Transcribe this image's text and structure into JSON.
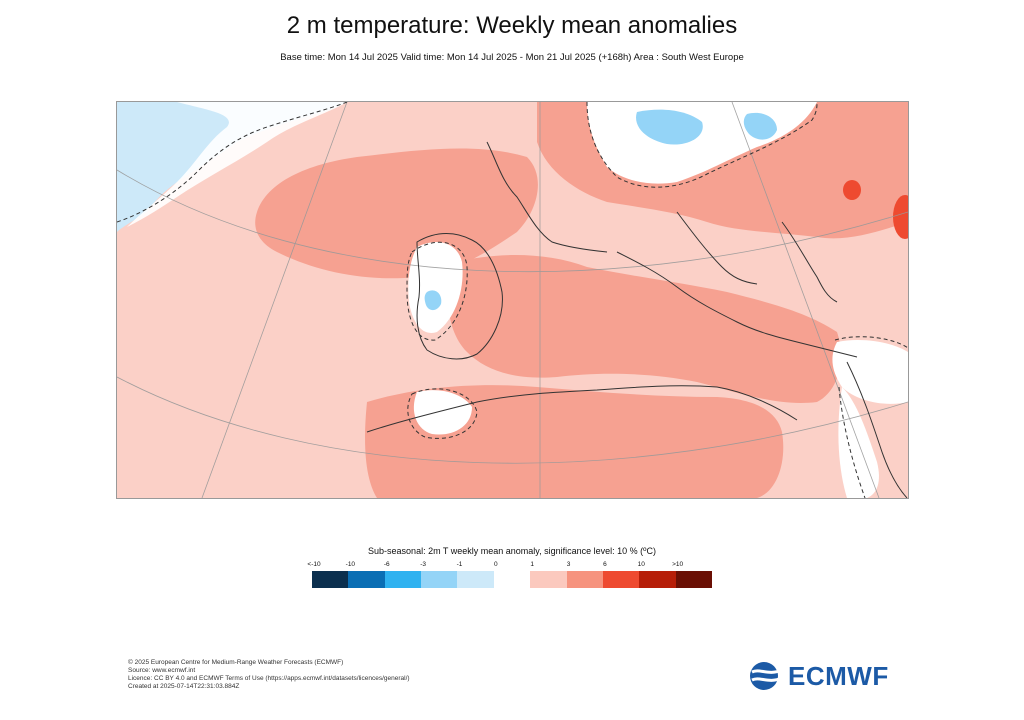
{
  "title": "2 m temperature: Weekly mean anomalies",
  "subtitle": "Base time: Mon 14 Jul 2025 Valid time: Mon 14 Jul 2025 - Mon 21 Jul 2025 (+168h) Area : South West Europe",
  "legend": {
    "title": "Sub-seasonal: 2m T weekly mean anomaly, significance level: 10 % (ºC)",
    "tick_labels": [
      "<-10",
      "-10",
      "-6",
      "-3",
      "-1",
      "0",
      "1",
      "3",
      "6",
      "10",
      ">10"
    ],
    "colors": [
      "#0b2f4e",
      "#0a6eb4",
      "#2fb2f0",
      "#94d4f7",
      "#cde9f9",
      "#ffffff",
      "#fbc9be",
      "#f6937e",
      "#ee4a30",
      "#b61e08",
      "#6a0f04"
    ]
  },
  "footer": {
    "line1": "© 2025 European Centre for Medium-Range Weather Forecasts (ECMWF)",
    "line2": "Source: www.ecmwf.int",
    "line3": "Licence: CC BY 4.0 and ECMWF Terms of Use (https://apps.ecmwf.int/datasets/licences/general/)",
    "line4": "Created at 2025-07-14T22:31:03.884Z"
  },
  "logo": {
    "text": "ECMWF",
    "color": "#1c5aa6"
  },
  "map": {
    "region": "South West Europe",
    "background_anomaly_color": "#fbd0c7",
    "warm_color": "#f6a191",
    "hot_color": "#ee4a30",
    "neutral_color": "#ffffff",
    "cool_color": "#cde9f9",
    "cold_color": "#94d4f7"
  }
}
